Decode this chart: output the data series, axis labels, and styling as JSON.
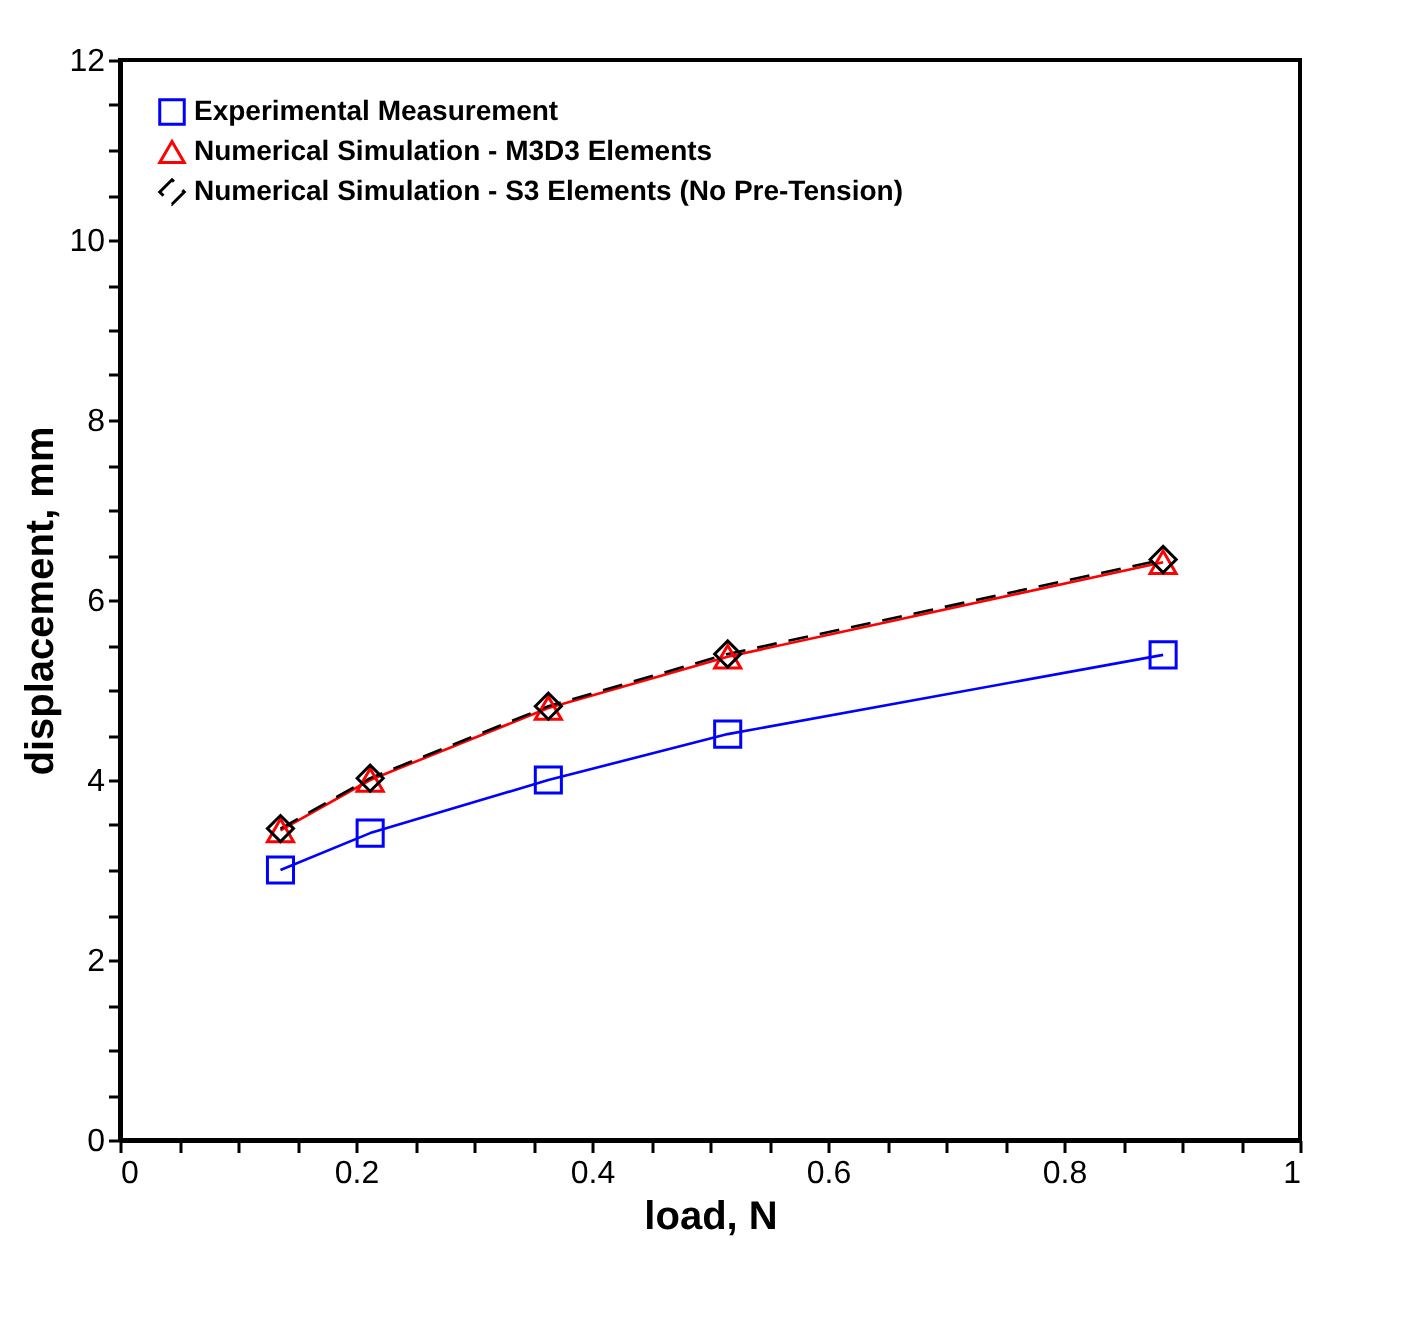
{
  "chart_data": {
    "type": "line",
    "xlabel": "load, N",
    "ylabel": "displacement, mm",
    "xlim": [
      0,
      1
    ],
    "ylim": [
      0,
      12
    ],
    "xticks": [
      0,
      {
        "value": 0.05,
        "label": null
      },
      {
        "value": 0.1,
        "label": null
      },
      {
        "value": 0.15,
        "label": null
      },
      0.2,
      {
        "value": 0.25,
        "label": null
      },
      {
        "value": 0.3,
        "label": null
      },
      {
        "value": 0.35,
        "label": null
      },
      0.4,
      {
        "value": 0.45,
        "label": null
      },
      {
        "value": 0.5,
        "label": null
      },
      {
        "value": 0.55,
        "label": null
      },
      0.6,
      {
        "value": 0.65,
        "label": null
      },
      {
        "value": 0.7,
        "label": null
      },
      {
        "value": 0.75,
        "label": null
      },
      0.8,
      {
        "value": 0.85,
        "label": null
      },
      {
        "value": 0.9,
        "label": null
      },
      {
        "value": 0.95,
        "label": null
      },
      1
    ],
    "yticks": [
      0,
      {
        "value": 0.5,
        "label": null
      },
      {
        "value": 1,
        "label": null
      },
      {
        "value": 1.5,
        "label": null
      },
      2,
      {
        "value": 2.5,
        "label": null
      },
      {
        "value": 3,
        "label": null
      },
      {
        "value": 3.5,
        "label": null
      },
      4,
      {
        "value": 4.5,
        "label": null
      },
      {
        "value": 5,
        "label": null
      },
      {
        "value": 5.5,
        "label": null
      },
      6,
      {
        "value": 6.5,
        "label": null
      },
      {
        "value": 7,
        "label": null
      },
      {
        "value": 7.5,
        "label": null
      },
      8,
      {
        "value": 8.5,
        "label": null
      },
      {
        "value": 9,
        "label": null
      },
      {
        "value": 9.5,
        "label": null
      },
      10,
      {
        "value": 10.5,
        "label": null
      },
      {
        "value": 11,
        "label": null
      },
      {
        "value": 11.5,
        "label": null
      },
      12
    ],
    "grid": false,
    "legend": "top left",
    "x": [
      0.136,
      0.212,
      0.363,
      0.515,
      0.884
    ],
    "series": [
      {
        "name": "Experimental Measurement",
        "color": "#0000ff",
        "marker": "square",
        "line_style": "solid",
        "values": [
          3.0,
          3.41,
          4.0,
          4.51,
          5.39
        ]
      },
      {
        "name": "Numerical Simulation - M3D3 Elements",
        "color": "#ff0000",
        "marker": "triangle",
        "line_style": "solid",
        "values": [
          3.44,
          4.0,
          4.8,
          5.37,
          6.42
        ]
      },
      {
        "name": "Numerical Simulation - S3 Elements (No Pre-Tension)",
        "color": "#000000",
        "marker": "diamond",
        "line_style": "dashed",
        "values": [
          3.46,
          4.02,
          4.82,
          5.4,
          6.45
        ]
      }
    ]
  }
}
